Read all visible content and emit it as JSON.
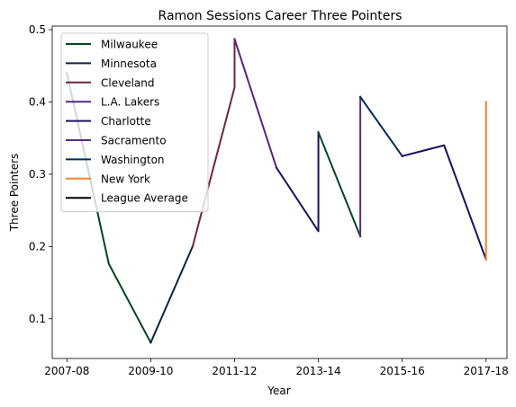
{
  "chart_data": {
    "type": "line",
    "title": "Ramon Sessions Career Three Pointers",
    "xlabel": "Year",
    "ylabel": "Three Pointers",
    "x_tick_labels": [
      "2007-08",
      "2009-10",
      "2011-12",
      "2013-14",
      "2015-16",
      "2017-18"
    ],
    "x_tick_positions": [
      0,
      2,
      4,
      6,
      8,
      10
    ],
    "y_ticks": [
      0.1,
      0.2,
      0.3,
      0.4,
      0.5
    ],
    "y_tick_labels": [
      "0.1",
      "0.2",
      "0.3",
      "0.4",
      "0.5"
    ],
    "xlim": [
      -0.35,
      10.5
    ],
    "ylim": [
      0.045,
      0.505
    ],
    "legend_position": "upper-left",
    "grid": false,
    "series": [
      {
        "name": "Milwaukee",
        "color": "#00471b",
        "x": [
          0,
          1,
          2
        ],
        "y": [
          0.44,
          0.176,
          0.067
        ]
      },
      {
        "name": "Minnesota",
        "color": "#0c2340",
        "x": [
          2,
          3
        ],
        "y": [
          0.067,
          0.2
        ]
      },
      {
        "name": "Cleveland",
        "color": "#6f263d",
        "x": [
          3,
          4,
          4
        ],
        "y": [
          0.2,
          0.42,
          0.487
        ]
      },
      {
        "name": "L.A. Lakers",
        "color": "#552583",
        "x": [
          4,
          5
        ],
        "y": [
          0.487,
          0.309
        ]
      },
      {
        "name": "Charlotte",
        "color": "#1d1160",
        "x": [
          5,
          6,
          6
        ],
        "y": [
          0.309,
          0.221,
          0.358
        ]
      },
      {
        "name": "Milwaukee",
        "color": "#00471b",
        "x": [
          6,
          7
        ],
        "y": [
          0.358,
          0.214
        ]
      },
      {
        "name": "Sacramento",
        "color": "#5a2d81",
        "x": [
          7,
          7
        ],
        "y": [
          0.214,
          0.407
        ]
      },
      {
        "name": "Washington",
        "color": "#002b5c",
        "x": [
          7,
          8
        ],
        "y": [
          0.407,
          0.325
        ]
      },
      {
        "name": "Charlotte",
        "color": "#1d1160",
        "x": [
          8,
          9,
          10
        ],
        "y": [
          0.325,
          0.34,
          0.182
        ]
      },
      {
        "name": "New York",
        "color": "#f58426",
        "x": [
          10,
          10
        ],
        "y": [
          0.182,
          0.4
        ]
      }
    ],
    "legend": [
      {
        "label": "Milwaukee",
        "color": "#00471b"
      },
      {
        "label": "Minnesota",
        "color": "#0c2340"
      },
      {
        "label": "Cleveland",
        "color": "#6f263d"
      },
      {
        "label": "L.A. Lakers",
        "color": "#552583"
      },
      {
        "label": "Charlotte",
        "color": "#1d1160"
      },
      {
        "label": "Sacramento",
        "color": "#5a2d81"
      },
      {
        "label": "Washington",
        "color": "#002b5c"
      },
      {
        "label": "New York",
        "color": "#f58426"
      },
      {
        "label": "League Average",
        "color": "#000000"
      }
    ]
  }
}
